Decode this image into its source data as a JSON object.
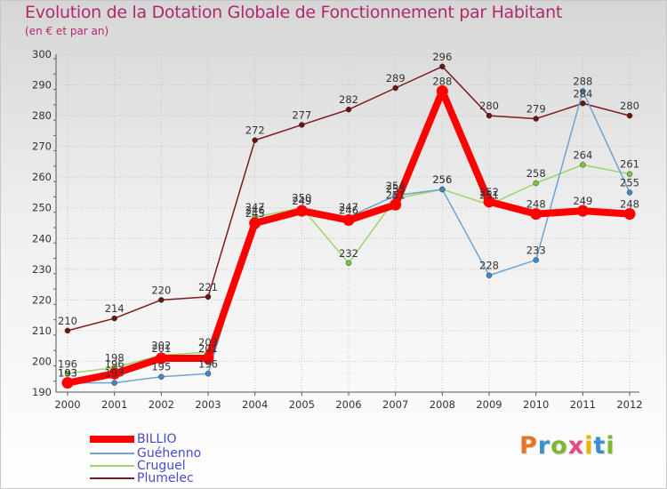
{
  "header": {
    "title": "Evolution de la Dotation Globale de Fonctionnement par Habitant",
    "subtitle": "(en € et par an)"
  },
  "logo": {
    "text": "Proxiti",
    "colors": [
      "#e8732a",
      "#3b8fd0",
      "#7cb832",
      "#e04a8a",
      "#f0b400",
      "#3b8fd0",
      "#7cb832"
    ]
  },
  "chart_data": {
    "type": "line",
    "title": "Evolution de la Dotation Globale de Fonctionnement par Habitant",
    "subtitle": "(en € et par an)",
    "xlabel": "",
    "ylabel": "",
    "ylim": [
      190,
      300
    ],
    "yticks": [
      190,
      200,
      210,
      220,
      230,
      240,
      250,
      260,
      270,
      280,
      290,
      300
    ],
    "categories": [
      "2000",
      "2001",
      "2002",
      "2003",
      "2004",
      "2005",
      "2006",
      "2007",
      "2008",
      "2009",
      "2010",
      "2011",
      "2012"
    ],
    "grid": true,
    "legend_position": "bottom-left",
    "series": [
      {
        "name": "Plumelec",
        "color": "#7a1c1c",
        "marker_color": "#6a1414",
        "values": [
          210,
          214,
          220,
          221,
          272,
          277,
          282,
          289,
          296,
          280,
          279,
          284,
          280
        ],
        "labels": [
          "210",
          "214",
          "220",
          "221",
          "272",
          "277",
          "282",
          "289",
          "296",
          "280",
          "279",
          "284",
          "280"
        ]
      },
      {
        "name": "Cruguel",
        "color": "#9ad66a",
        "marker_color": "#7cc83c",
        "values": [
          196,
          198,
          202,
          203,
          247,
          250,
          232,
          253,
          256,
          251,
          258,
          264,
          261
        ],
        "labels": [
          "196",
          "198",
          "202",
          "203",
          "247",
          "250",
          "232",
          "253",
          "256",
          "251",
          "258",
          "264",
          "261"
        ]
      },
      {
        "name": "Guéhenno",
        "color": "#6fa4d0",
        "marker_color": "#3f88c8",
        "values": [
          193,
          193,
          195,
          196,
          246,
          249,
          247,
          254,
          256,
          228,
          233,
          288,
          255
        ],
        "labels": [
          "193",
          "193",
          "195",
          "196",
          "246",
          "249",
          "247",
          "254",
          "256",
          "228",
          "233",
          "288",
          "255"
        ]
      },
      {
        "name": "BILLIO",
        "color": "#ff0000",
        "marker_color": "#ff0000",
        "values": [
          193,
          196,
          201,
          201,
          245,
          249,
          246,
          251,
          288,
          252,
          248,
          249,
          248
        ],
        "labels": [
          "193",
          "196",
          "201",
          "201",
          "245",
          "249",
          "246",
          "251",
          "288",
          "252",
          "248",
          "249",
          "248"
        ]
      }
    ]
  },
  "legend": {
    "items": [
      {
        "label": "BILLIO",
        "color": "#ff0000"
      },
      {
        "label": "Guéhenno",
        "color": "#6fa4d0"
      },
      {
        "label": "Cruguel",
        "color": "#9ad66a"
      },
      {
        "label": "Plumelec",
        "color": "#7a1c1c"
      }
    ]
  }
}
